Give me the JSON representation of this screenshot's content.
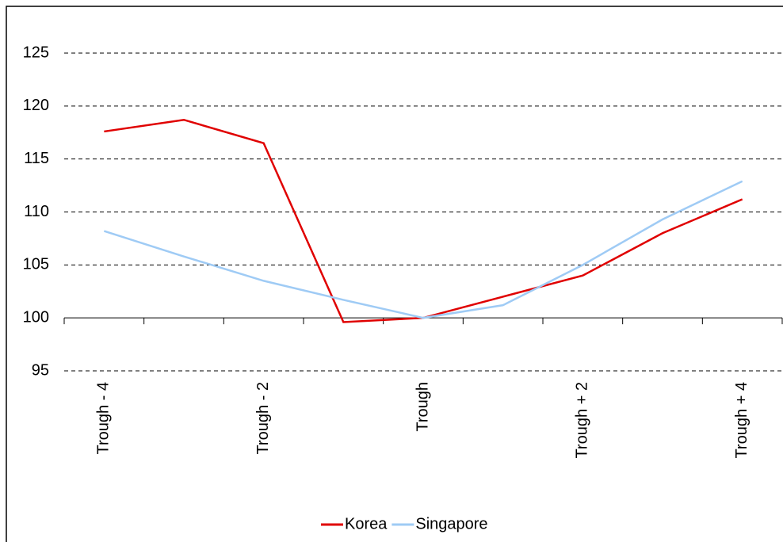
{
  "chart_data": {
    "type": "line",
    "categories": [
      "Trough - 4",
      null,
      "Trough - 2",
      null,
      "Trough",
      null,
      "Trough + 2",
      null,
      "Trough + 4"
    ],
    "series": [
      {
        "name": "Korea",
        "color": "#e00000",
        "values": [
          117.6,
          118.7,
          116.5,
          99.6,
          100,
          102,
          104,
          108,
          111.2
        ]
      },
      {
        "name": "Singapore",
        "color": "#9fcbf5",
        "values": [
          108.2,
          105.8,
          103.5,
          101.7,
          100,
          101.2,
          105,
          109.3,
          112.9
        ]
      }
    ],
    "ylim": [
      95,
      130
    ],
    "yticks": [
      95,
      100,
      105,
      110,
      115,
      120,
      125
    ],
    "grid": true,
    "x_axis_crosses": 100,
    "legend": "bottom"
  }
}
